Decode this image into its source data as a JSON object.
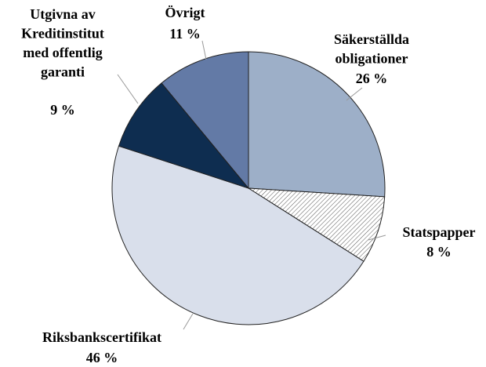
{
  "chart_data": {
    "type": "pie",
    "categories": [
      "Säkerställda\nobligationer",
      "Statspapper",
      "Riksbankscertifikat",
      "Utgivna av\nKreditinstitut\nmed offentlig\ngaranti",
      "Övrigt"
    ],
    "values": [
      26,
      8,
      46,
      9,
      11
    ],
    "value_labels": [
      "26 %",
      "8 %",
      "46 %",
      "9 %",
      "11 %"
    ],
    "colors": [
      "#9dafc8",
      "#ffffff",
      "#d9dfeb",
      "#0e2d50",
      "#637aa6"
    ],
    "hatched": [
      false,
      true,
      false,
      false,
      false
    ]
  }
}
